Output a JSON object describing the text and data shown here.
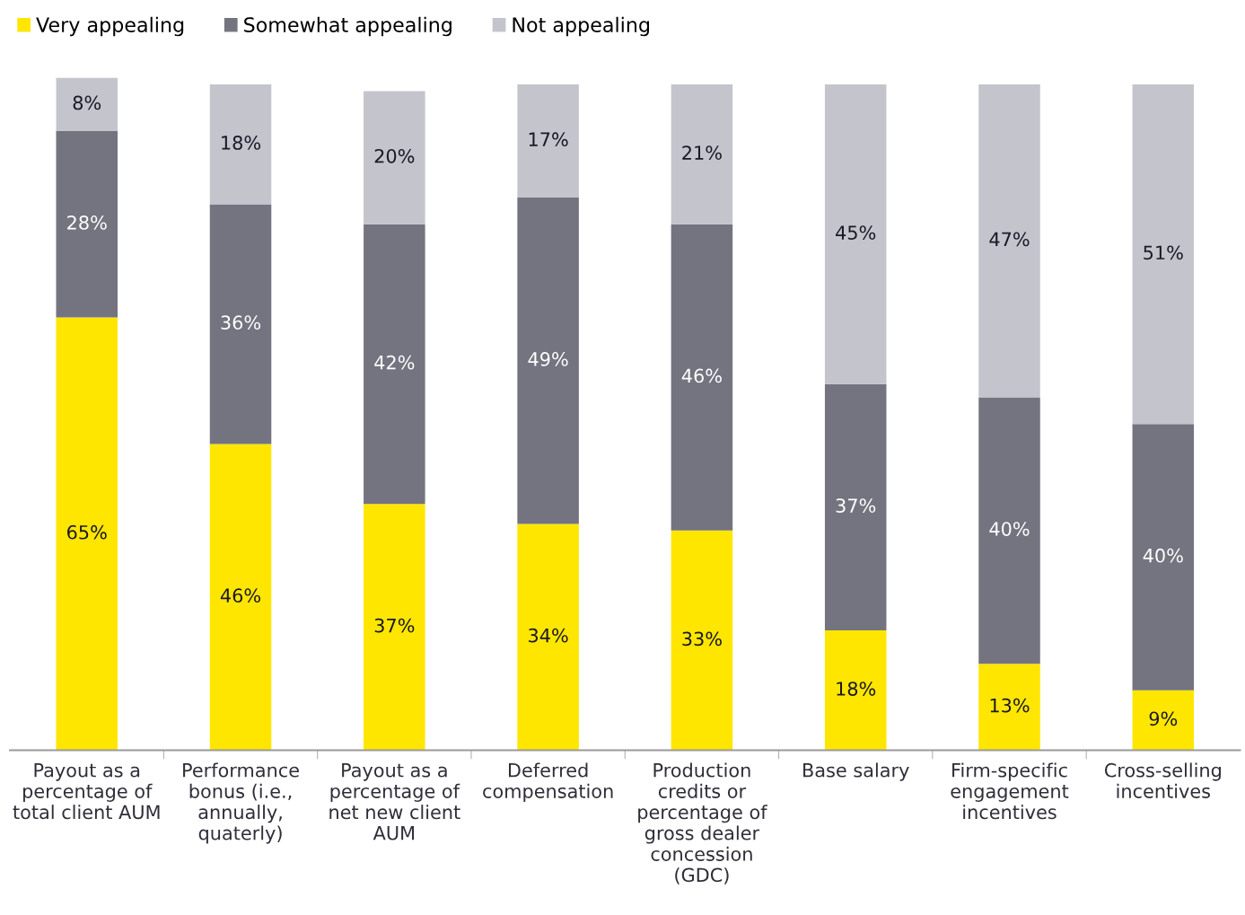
{
  "chart_data": {
    "type": "bar",
    "stacked": true,
    "legend": "top left",
    "grid": false,
    "tick_labels": "x",
    "categories": [
      "Payout as a\npercentage of\ntotal client AUM",
      "Performance\nbonus (i.e.,\nannually,\nquaterly)",
      "Payout as a\npercentage of\nnet new client\nAUM",
      "Deferred\ncompensation",
      "Production\ncredits or\npercentage of\ngross dealer\nconcession\n(GDC)",
      "Base salary",
      "Firm-specific\nengagement\nincentives",
      "Cross-selling\nincentives"
    ],
    "series": [
      {
        "name": "Very appealing",
        "color": "#ffe600",
        "values": [
          65,
          46,
          37,
          34,
          33,
          18,
          13,
          9
        ],
        "value_labels": [
          "65%",
          "46%",
          "37%",
          "34%",
          "33%",
          "18%",
          "13%",
          "9%"
        ]
      },
      {
        "name": "Somewhat appealing",
        "color": "#747480",
        "values": [
          28,
          36,
          42,
          49,
          46,
          37,
          40,
          40
        ],
        "value_labels": [
          "28%",
          "36%",
          "42%",
          "49%",
          "46%",
          "37%",
          "40%",
          "40%"
        ]
      },
      {
        "name": "Not appealing",
        "color": "#c4c4cd",
        "values": [
          8,
          18,
          20,
          17,
          21,
          45,
          47,
          51
        ],
        "value_labels": [
          "8%",
          "18%",
          "20%",
          "17%",
          "21%",
          "45%",
          "47%",
          "51%"
        ]
      }
    ]
  }
}
